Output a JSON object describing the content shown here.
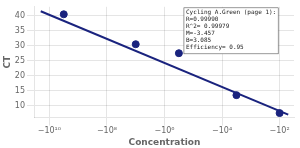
{
  "chart_data": {
    "type": "scatter",
    "xlabel": "Concentration",
    "ylabel": "CT",
    "series": [
      {
        "type": "line",
        "color": "#1a237e",
        "x": [
          -10.3,
          -1.7
        ],
        "values": [
          41.5,
          7.0
        ]
      },
      {
        "type": "scatter",
        "color": "#1a237e",
        "x": [
          -9.5,
          -7.0,
          -5.5,
          -3.5,
          -2.0
        ],
        "values": [
          40.5,
          30.5,
          27.5,
          13.5,
          7.5
        ]
      }
    ],
    "xlim": [
      -10.5,
      -1.5
    ],
    "ylim": [
      6,
      43
    ],
    "xticks": [
      {
        "value": -10,
        "label": "−10¹⁰"
      },
      {
        "value": -8,
        "label": "−10⁸"
      },
      {
        "value": -6,
        "label": "−10⁶"
      },
      {
        "value": -4,
        "label": "−10⁴"
      },
      {
        "value": -2,
        "label": "−10²"
      }
    ],
    "yticks": [
      10,
      15,
      20,
      25,
      30,
      35,
      40
    ],
    "grid": true,
    "annotation": "Cycling A.Green (page 1):\nR=0.99990\nR^2= 0.99979\nM=-3.457\nB=3.085\nEfficiency= 0.95"
  }
}
